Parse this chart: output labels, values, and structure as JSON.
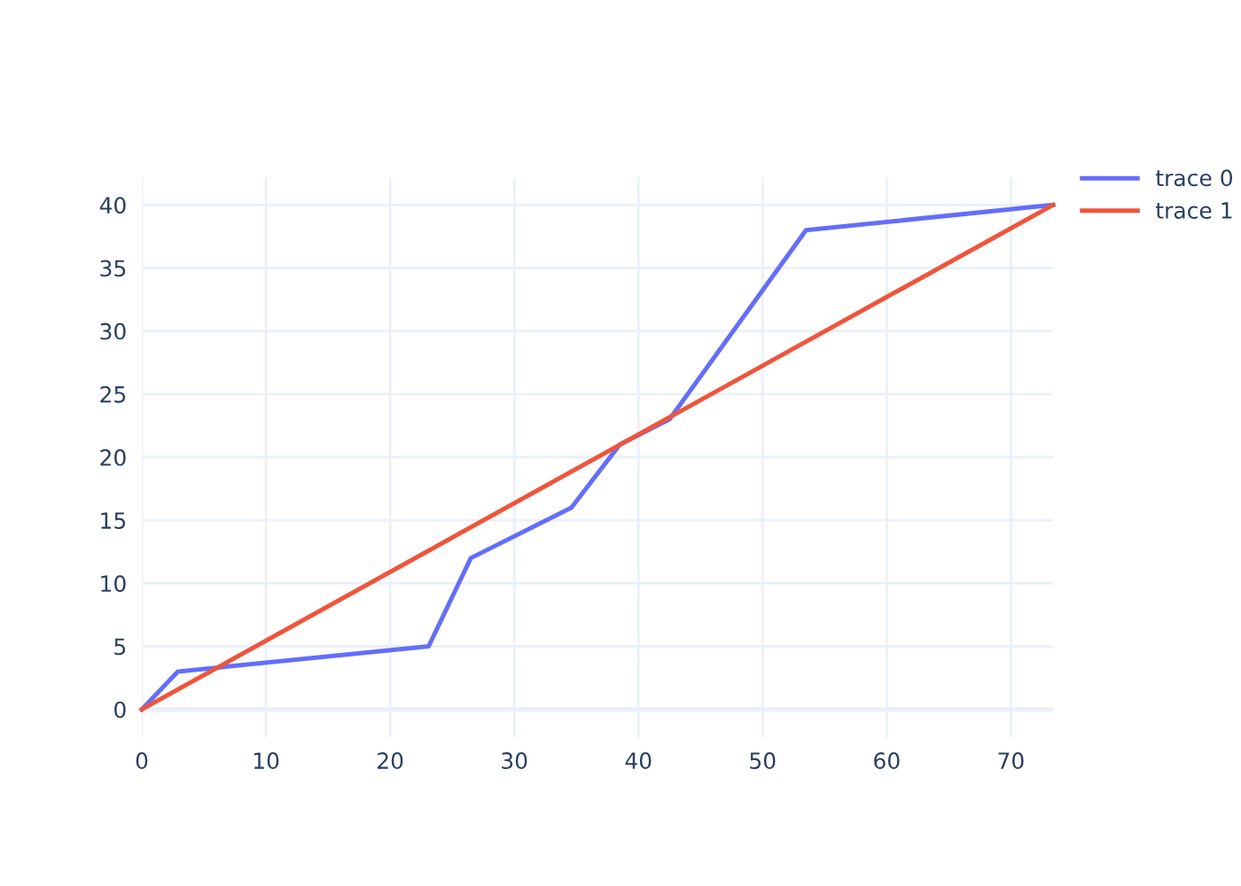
{
  "chart_data": {
    "type": "line",
    "series": [
      {
        "name": "trace 0",
        "color": "#636efa",
        "x": [
          0,
          2.9,
          23.1,
          26.5,
          34.6,
          38.5,
          42.5,
          53.5,
          73.4
        ],
        "values": [
          0,
          3,
          5,
          12,
          16,
          21,
          23,
          38,
          40
        ]
      },
      {
        "name": "trace 1",
        "color": "#ef553b",
        "x": [
          0,
          73.4
        ],
        "values": [
          0,
          40
        ]
      }
    ],
    "xlim": [
      0,
      73.4
    ],
    "xticks": [
      0,
      10,
      20,
      30,
      40,
      50,
      60,
      70
    ],
    "ylim": [
      -2.2,
      42.2
    ],
    "yticks": [
      0,
      5,
      10,
      15,
      20,
      25,
      30,
      35,
      40
    ],
    "grid": true,
    "legend": "top right",
    "marker": "none",
    "line_style": "solid"
  }
}
